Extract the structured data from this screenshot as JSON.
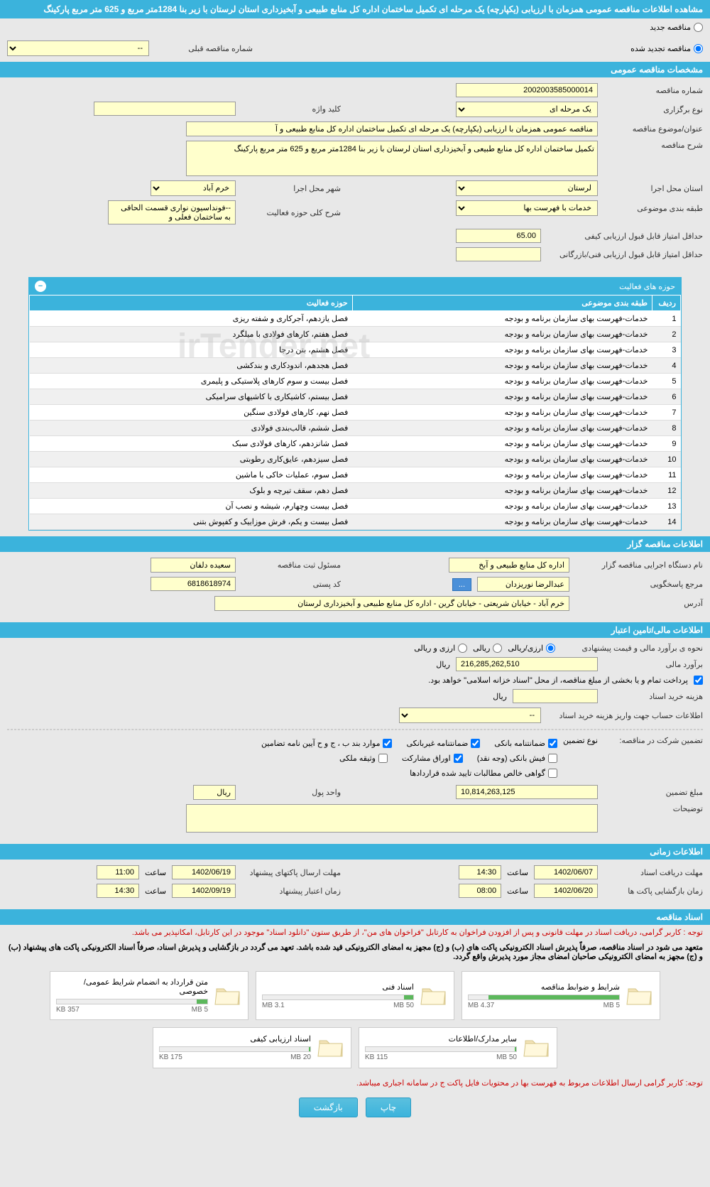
{
  "header": {
    "title": "مشاهده اطلاعات مناقصه عمومی همزمان با ارزیابی (یکپارچه) یک مرحله ای تکمیل ساختمان اداره کل منابع طبیعی و آبخیزداری استان لرستان با زیر بنا 1284متر مربع و 625 متر مربع پارکینگ"
  },
  "tender_type": {
    "new_label": "مناقصه جدید",
    "renewed_label": "مناقصه تجدید شده",
    "prev_number_label": "شماره مناقصه قبلی",
    "prev_number_value": "--"
  },
  "sections": {
    "general": "مشخصات مناقصه عمومی",
    "tenderer": "اطلاعات مناقصه گزار",
    "financial": "اطلاعات مالی/تامین اعتبار",
    "timing": "اطلاعات زمانی",
    "documents": "اسناد مناقصه"
  },
  "general": {
    "number_label": "شماره مناقصه",
    "number_value": "2002003585000014",
    "type_label": "نوع برگزاری",
    "type_value": "یک مرحله ای",
    "keyword_label": "کلید واژه",
    "keyword_value": "",
    "subject_label": "عنوان/موضوع مناقصه",
    "subject_value": "مناقصه عمومی همزمان با ارزیابی (یکپارچه) یک مرحله ای تکمیل ساختمان اداره کل منابع طبیعی و آ",
    "desc_label": "شرح مناقصه",
    "desc_value": "تکمیل ساختمان اداره کل منابع طبیعی و آبخیزداری استان لرستان با زیر بنا 1284متر مربع و 625 متر مربع پارکینگ",
    "province_label": "استان محل اجرا",
    "province_value": "لرستان",
    "city_label": "شهر محل اجرا",
    "city_value": "خرم آباد",
    "category_label": "طبقه بندی موضوعی",
    "category_value": "خدمات با فهرست بها",
    "activity_desc_label": "شرح کلی حوزه فعالیت",
    "activity_desc_value": "--فونداسیون نواری قسمت الحاقی به ساختمان فعلی و",
    "min_quality_label": "حداقل امتیاز قابل قبول ارزیابی کیفی",
    "min_quality_value": "65.00",
    "min_tech_label": "حداقل امتیاز قابل قبول ارزیابی فنی/بازرگانی",
    "min_tech_value": ""
  },
  "activities": {
    "panel_title": "حوزه های فعالیت",
    "col_row": "ردیف",
    "col_category": "طبقه بندی موضوعی",
    "col_activity": "حوزه فعالیت",
    "rows": [
      {
        "n": "1",
        "cat": "خدمات-فهرست بهای سازمان برنامه و بودجه",
        "act": "فصل یازدهم، آجرکاری و شفته ریزی"
      },
      {
        "n": "2",
        "cat": "خدمات-فهرست بهای سازمان برنامه و بودجه",
        "act": "فصل هفتم، کارهای فولادی با میلگرد"
      },
      {
        "n": "3",
        "cat": "خدمات-فهرست بهای سازمان برنامه و بودجه",
        "act": "فصل هشتم، بتن درجا"
      },
      {
        "n": "4",
        "cat": "خدمات-فهرست بهای سازمان برنامه و بودجه",
        "act": "فصل هجدهم، اندودکاری و بندکشی"
      },
      {
        "n": "5",
        "cat": "خدمات-فهرست بهای سازمان برنامه و بودجه",
        "act": "فصل بیست و سوم کارهای پلاستیکی و پلیمری"
      },
      {
        "n": "6",
        "cat": "خدمات-فهرست بهای سازمان برنامه و بودجه",
        "act": "فصل بیستم، کاشیکاری با کاشیهای سرامیکی"
      },
      {
        "n": "7",
        "cat": "خدمات-فهرست بهای سازمان برنامه و بودجه",
        "act": "فصل نهم، کارهای فولادی سنگین"
      },
      {
        "n": "8",
        "cat": "خدمات-فهرست بهای سازمان برنامه و بودجه",
        "act": "فصل ششم، قالب‌بندی فولادی"
      },
      {
        "n": "9",
        "cat": "خدمات-فهرست بهای سازمان برنامه و بودجه",
        "act": "فصل شانزدهم، کارهای فولادی سبک"
      },
      {
        "n": "10",
        "cat": "خدمات-فهرست بهای سازمان برنامه و بودجه",
        "act": "فصل سیزدهم، عایق‌کاری رطوبتی"
      },
      {
        "n": "11",
        "cat": "خدمات-فهرست بهای سازمان برنامه و بودجه",
        "act": "فصل سوم، عملیات خاکی با ماشین"
      },
      {
        "n": "12",
        "cat": "خدمات-فهرست بهای سازمان برنامه و بودجه",
        "act": "فصل دهم، سقف تیرچه و بلوک"
      },
      {
        "n": "13",
        "cat": "خدمات-فهرست بهای سازمان برنامه و بودجه",
        "act": "فصل بیست وچهارم، شیشه و نصب آن"
      },
      {
        "n": "14",
        "cat": "خدمات-فهرست بهای سازمان برنامه و بودجه",
        "act": "فصل بیست و یکم، فرش موزاییک و کفپوش بتنی"
      }
    ]
  },
  "tenderer": {
    "org_label": "نام دستگاه اجرایی مناقصه گزار",
    "org_value": "اداره کل منابع طبیعی و آبخ",
    "registrar_label": "مسئول ثبت مناقصه",
    "registrar_value": "سعیده دلفان",
    "responder_label": "مرجع پاسخگویی",
    "responder_value": "عبدالرضا نوریزدان",
    "postal_label": "کد پستی",
    "postal_value": "6818618974",
    "address_label": "آدرس",
    "address_value": "خرم آباد - خیابان شریعتی - خیابان گرین - اداره کل منابع طبیعی و آبخیزداری لرستان",
    "more_btn": "..."
  },
  "financial": {
    "estimate_method_label": "نحوه ی برآورد مالی و قیمت پیشنهادی",
    "opt_rial": "ارزی/ریالی",
    "opt_rial2": "ریالی",
    "opt_currency": "ارزی و ریالی",
    "estimate_label": "برآورد مالی",
    "estimate_value": "216,285,262,510",
    "unit_rial": "ریال",
    "payment_note": "پرداخت تمام و یا بخشی از مبلغ مناقصه، از محل \"اسناد خزانه اسلامی\" خواهد بود.",
    "doc_cost_label": "هزینه خرید اسناد",
    "doc_cost_value": "",
    "account_label": "اطلاعات حساب جهت واریز هزینه خرید اسناد",
    "account_value": "--",
    "guarantee_label": "تضمین شرکت در مناقصه:",
    "guarantee_type_label": "نوع تضمین",
    "chk_bank": "ضمانتنامه بانکی",
    "chk_nonbank": "ضمانتنامه غیربانکی",
    "chk_regulation": "موارد بند ب ، ج و ح آیین نامه تضامین",
    "chk_cash": "فیش بانکی (وجه نقد)",
    "chk_bonds": "اوراق مشارکت",
    "chk_property": "وثیقه ملکی",
    "chk_receivables": "گواهی خالص مطالبات تایید شده قراردادها",
    "guarantee_amount_label": "مبلغ تضمین",
    "guarantee_amount_value": "10,814,263,125",
    "currency_unit_label": "واحد پول",
    "currency_unit_value": "ریال",
    "notes_label": "توضیحات",
    "notes_value": ""
  },
  "timing": {
    "receive_label": "مهلت دریافت اسناد",
    "receive_date": "1402/06/07",
    "receive_time_label": "ساعت",
    "receive_time": "14:30",
    "submit_label": "مهلت ارسال پاکتهای پیشنهاد",
    "submit_date": "1402/06/19",
    "submit_time": "11:00",
    "open_label": "زمان بازگشایی پاکت ها",
    "open_date": "1402/06/20",
    "open_time": "08:00",
    "validity_label": "زمان اعتبار پیشنهاد",
    "validity_date": "1402/09/19",
    "validity_time": "14:30"
  },
  "notes": {
    "red1": "توجه : کاربر گرامی، دریافت اسناد در مهلت قانونی و پس از افزودن فراخوان به کارتابل \"فراخوان های من\"، از طریق ستون \"دانلود اسناد\" موجود در این کارتابل، امکانپذیر می باشد.",
    "black1": "متعهد می شود در اسناد مناقصه، صرفاً پذیرش اسناد الکترونیکی پاکت های (ب) و (ج) مجهز به امضای الکترونیکی قید شده باشد. تعهد می گردد در بازگشایی و پذیرش اسناد، صرفاً اسناد الکترونیکی پاکت های پیشنهاد (ب) و (ج) مجهز به امضای الکترونیکی صاحبان امضای مجاز مورد پذیرش واقع گردد.",
    "red2": "توجه: کاربر گرامی ارسال اطلاعات مربوط به فهرست بها در محتویات فایل پاکت ج در سامانه اجباری میباشد."
  },
  "documents": [
    {
      "title": "شرایط و ضوابط مناقصه",
      "used": "4.37 MB",
      "total": "5 MB",
      "pct": 87
    },
    {
      "title": "اسناد فنی",
      "used": "3.1 MB",
      "total": "50 MB",
      "pct": 6
    },
    {
      "title": "متن قرارداد به انضمام شرایط عمومی/خصوصی",
      "used": "357 KB",
      "total": "5 MB",
      "pct": 7
    },
    {
      "title": "سایر مدارک/اطلاعات",
      "used": "115 KB",
      "total": "50 MB",
      "pct": 1
    },
    {
      "title": "اسناد ارزیابی کیفی",
      "used": "175 KB",
      "total": "20 MB",
      "pct": 1
    }
  ],
  "footer": {
    "print": "چاپ",
    "back": "بازگشت"
  },
  "watermark": "irTender.net"
}
